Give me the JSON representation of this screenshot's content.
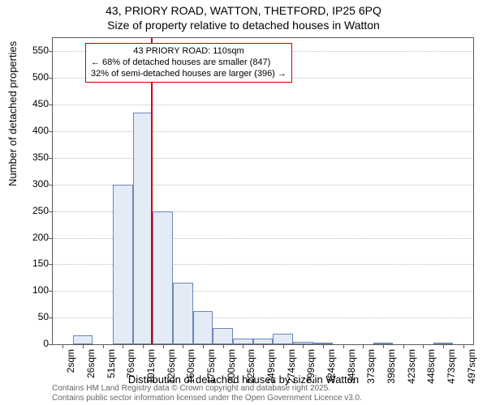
{
  "title": {
    "line1": "43, PRIORY ROAD, WATTON, THETFORD, IP25 6PQ",
    "line2": "Size of property relative to detached houses in Watton"
  },
  "chart": {
    "type": "histogram",
    "ylabel": "Number of detached properties",
    "xlabel": "Distribution of detached houses by size in Watton",
    "ylim": [
      0,
      575
    ],
    "ytick_step": 50,
    "yticks": [
      0,
      50,
      100,
      150,
      200,
      250,
      300,
      350,
      400,
      450,
      500,
      550
    ],
    "xticks": [
      "2sqm",
      "26sqm",
      "51sqm",
      "76sqm",
      "101sqm",
      "126sqm",
      "150sqm",
      "175sqm",
      "200sqm",
      "225sqm",
      "249sqm",
      "274sqm",
      "299sqm",
      "324sqm",
      "348sqm",
      "373sqm",
      "398sqm",
      "423sqm",
      "448sqm",
      "473sqm",
      "497sqm"
    ],
    "values": [
      0,
      17,
      0,
      300,
      435,
      250,
      115,
      63,
      30,
      10,
      10,
      20,
      5,
      3,
      0,
      0,
      3,
      0,
      0,
      3,
      0
    ],
    "bar_fill": "#e3ebf7",
    "bar_stroke": "#6b86b5",
    "background_color": "#ffffff",
    "grid_color": "#bdbdbd",
    "axis_color": "#5b5b5b",
    "marker_line": {
      "x_index": 4.4,
      "color": "#d40000"
    },
    "annotation": {
      "line1": "43 PRIORY ROAD: 110sqm",
      "line2": "← 68% of detached houses are smaller (847)",
      "line3": "32% of semi-detached houses are larger (396) →",
      "border_color": "#d40000",
      "bg_color": "#ffffff",
      "fontsize": 11
    }
  },
  "footnote": {
    "line1": "Contains HM Land Registry data © Crown copyright and database right 2025.",
    "line2": "Contains public sector information licensed under the Open Government Licence v3.0."
  }
}
